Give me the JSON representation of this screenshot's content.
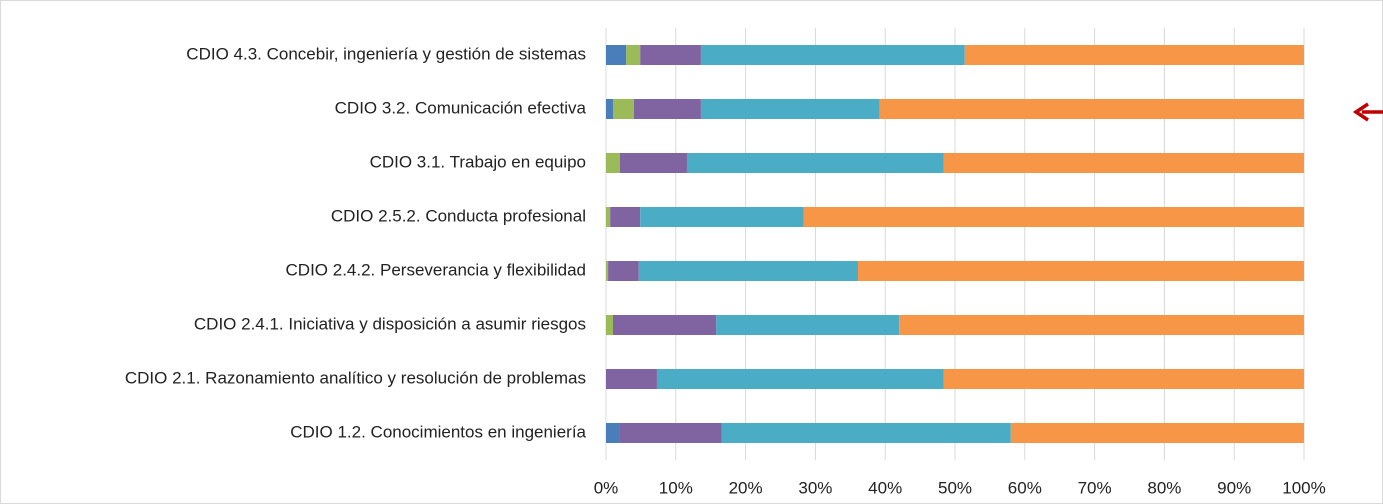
{
  "chart_data": {
    "type": "bar",
    "orientation": "horizontal",
    "stacked": true,
    "categories": [
      "CDIO 4.3. Concebir, ingeniería y gestión de sistemas",
      "CDIO 3.2. Comunicación efectiva",
      "CDIO 3.1. Trabajo en equipo",
      "CDIO 2.5.2. Conducta profesional",
      "CDIO 2.4.2. Perseverancia y flexibilidad",
      "CDIO 2.4.1. Iniciativa y disposición a asumir riesgos",
      "CDIO 2.1. Razonamiento analítico y resolución de problemas",
      "CDIO 1.2. Conocimientos en ingeniería"
    ],
    "series": [
      {
        "color": "#4a7ebb",
        "values": [
          2.9,
          1.0,
          0,
          0,
          0,
          0,
          0,
          2.0
        ]
      },
      {
        "color": "#9bbb59",
        "values": [
          2.0,
          3.0,
          2.0,
          0.6,
          0.3,
          1.0,
          0,
          0
        ]
      },
      {
        "color": "#8064a2",
        "values": [
          8.7,
          9.6,
          9.6,
          4.3,
          4.4,
          14.8,
          7.3,
          14.6
        ]
      },
      {
        "color": "#4bacc6",
        "values": [
          37.8,
          25.6,
          36.8,
          23.4,
          31.4,
          26.2,
          41.1,
          41.4
        ]
      },
      {
        "color": "#f79646",
        "values": [
          48.6,
          60.8,
          51.6,
          71.7,
          63.9,
          58.0,
          51.6,
          42.0
        ]
      }
    ],
    "xlim": [
      0,
      100
    ],
    "xticks": [
      {
        "value": 0,
        "label": "0%"
      },
      {
        "value": 10,
        "label": "10%"
      },
      {
        "value": 20,
        "label": "20%"
      },
      {
        "value": 30,
        "label": "30%"
      },
      {
        "value": 40,
        "label": "40%"
      },
      {
        "value": 50,
        "label": "50%"
      },
      {
        "value": 60,
        "label": "60%"
      },
      {
        "value": 70,
        "label": "70%"
      },
      {
        "value": 80,
        "label": "80%"
      },
      {
        "value": 90,
        "label": "90%"
      },
      {
        "value": 100,
        "label": "100%"
      }
    ],
    "grid": true
  }
}
